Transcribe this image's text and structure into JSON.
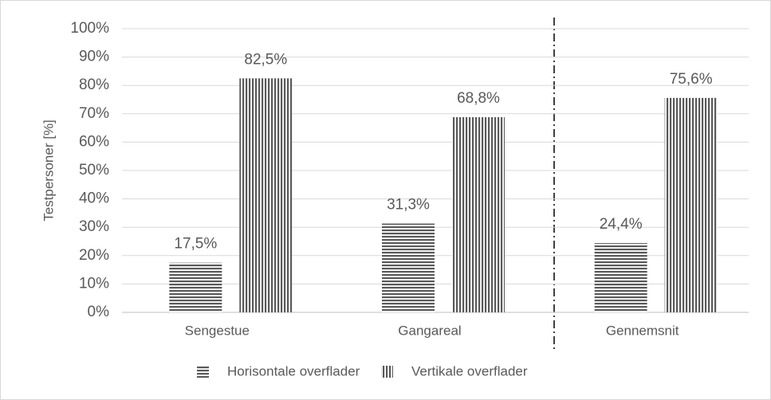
{
  "chart_data": {
    "type": "bar",
    "y_label": "Testpersoner [%]",
    "categories": [
      "Sengestue",
      "Gangareal",
      "Gennemsnit"
    ],
    "series": [
      {
        "name": "Horisontale overflader",
        "color": "#595959",
        "hatch": "horizontal",
        "values": [
          17.5,
          31.3,
          24.4
        ],
        "value_labels": [
          "17,5%",
          "31,3%",
          "24,4%"
        ]
      },
      {
        "name": "Vertikale overflader",
        "color": "#595959",
        "hatch": "vertical",
        "values": [
          82.5,
          68.8,
          75.6
        ],
        "value_labels": [
          "82,5%",
          "68,8%",
          "75,6%"
        ]
      }
    ],
    "ylim": [
      0,
      100
    ],
    "yticks": [
      {
        "value": 0,
        "label": "0%"
      },
      {
        "value": 10,
        "label": "10%"
      },
      {
        "value": 20,
        "label": "20%"
      },
      {
        "value": 30,
        "label": "30%"
      },
      {
        "value": 40,
        "label": "40%"
      },
      {
        "value": 50,
        "label": "50%"
      },
      {
        "value": 60,
        "label": "60%"
      },
      {
        "value": 70,
        "label": "70%"
      },
      {
        "value": 80,
        "label": "80%"
      },
      {
        "value": 90,
        "label": "90%"
      },
      {
        "value": 100,
        "label": "100%"
      }
    ],
    "grid": true,
    "legend": "bottom"
  }
}
